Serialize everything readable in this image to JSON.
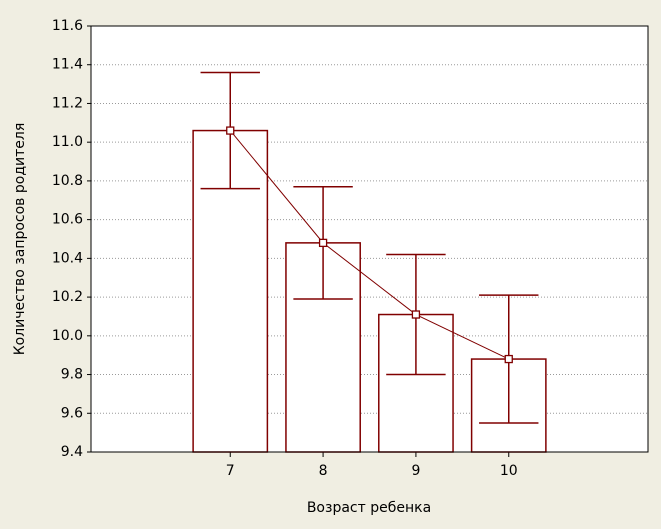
{
  "chart_data": {
    "type": "bar",
    "x": [
      7,
      8,
      9,
      10
    ],
    "values": [
      11.06,
      10.48,
      10.11,
      9.88
    ],
    "errors": [
      0.3,
      0.29,
      0.31,
      0.33
    ],
    "color": "#800000",
    "xlim": [
      5.5,
      11.5
    ],
    "xticks": [
      7,
      8,
      9,
      10
    ],
    "ylim": [
      9.4,
      11.6
    ],
    "yticks": [
      11.6,
      11.4,
      11.2,
      {
        "value": 11,
        "label": "11.0"
      },
      10.8,
      10.6,
      10.4,
      10.2,
      {
        "value": 10,
        "label": "10.0"
      },
      9.8,
      9.6,
      9.4
    ],
    "grid": true,
    "x_label": "Возраст ребенка",
    "y_label": "Количество запросов родителя"
  }
}
